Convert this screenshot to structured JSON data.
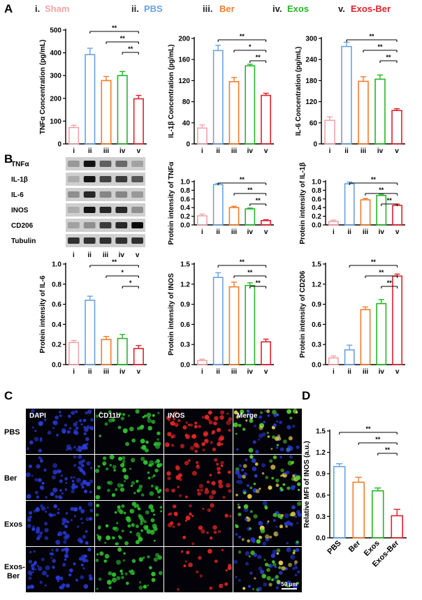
{
  "figure": {
    "panel_letters": [
      "A",
      "B",
      "C",
      "D"
    ],
    "group_labels": [
      {
        "numeral": "i.",
        "name": "Sham",
        "color": "#f2a3a8"
      },
      {
        "numeral": "ii.",
        "name": "PBS",
        "color": "#6aa2e0"
      },
      {
        "numeral": "iii.",
        "name": "Ber",
        "color": "#ef7d2c"
      },
      {
        "numeral": "iv.",
        "name": "Exos",
        "color": "#26b526"
      },
      {
        "numeral": "v.",
        "name": "Exos-Ber",
        "color": "#e0202a"
      }
    ],
    "western_blot": {
      "bands": [
        "TNFα",
        "IL-1β",
        "IL-6",
        "INOS",
        "CD206",
        "Tubulin"
      ],
      "lanes": [
        "i",
        "ii",
        "iii",
        "iv",
        "v"
      ]
    },
    "microscopy": {
      "channels": [
        "DAPI",
        "CD11b",
        "INOS",
        "Merge"
      ],
      "rows": [
        "PBS",
        "Ber",
        "Exos",
        "Exos-Ber"
      ],
      "scale_bar": "50 μm"
    }
  },
  "chart_data": [
    {
      "id": "tnfa",
      "panel": "A",
      "type": "bar",
      "categories": [
        "i",
        "ii",
        "iii",
        "iv",
        "v"
      ],
      "values": [
        72,
        392,
        278,
        300,
        198
      ],
      "errors": [
        10,
        28,
        18,
        18,
        15
      ],
      "ylabel": "TNFα Concentration (pg/mL)",
      "ylim": [
        0,
        500
      ],
      "yticks": [
        "0",
        "100",
        "200",
        "300",
        "400",
        "500"
      ],
      "significance": [
        {
          "from": "ii",
          "to": "v",
          "label": "**"
        },
        {
          "from": "iii",
          "to": "v",
          "label": "**"
        },
        {
          "from": "iv",
          "to": "v",
          "label": "**"
        }
      ]
    },
    {
      "id": "il1b",
      "panel": "A",
      "type": "bar",
      "categories": [
        "i",
        "ii",
        "iii",
        "iv",
        "v"
      ],
      "values": [
        30,
        177,
        118,
        148,
        92
      ],
      "errors": [
        6,
        10,
        8,
        3,
        4
      ],
      "ylabel": "IL-1β Concentration (pg/mL)",
      "ylim": [
        0,
        200
      ],
      "yticks": [
        "0",
        "40",
        "80",
        "120",
        "160",
        "200"
      ],
      "significance": [
        {
          "from": "ii",
          "to": "v",
          "label": "**"
        },
        {
          "from": "iii",
          "to": "v",
          "label": "*"
        },
        {
          "from": "iv",
          "to": "v",
          "label": "**"
        }
      ]
    },
    {
      "id": "il6",
      "panel": "A",
      "type": "bar",
      "categories": [
        "i",
        "ii",
        "iii",
        "iv",
        "v"
      ],
      "values": [
        67,
        277,
        178,
        184,
        95
      ],
      "errors": [
        10,
        12,
        13,
        12,
        5
      ],
      "ylabel": "IL-6 Concentration (pg/mL)",
      "ylim": [
        0,
        300
      ],
      "yticks": [
        "0",
        "60",
        "120",
        "180",
        "240",
        "300"
      ],
      "significance": [
        {
          "from": "ii",
          "to": "v",
          "label": "**"
        },
        {
          "from": "iii",
          "to": "v",
          "label": "**"
        },
        {
          "from": "iv",
          "to": "v",
          "label": "**"
        }
      ]
    },
    {
      "id": "pi_tnfa",
      "panel": "B",
      "type": "bar",
      "categories": [
        "i",
        "ii",
        "iii",
        "iv",
        "v"
      ],
      "values": [
        0.21,
        0.93,
        0.4,
        0.37,
        0.1
      ],
      "errors": [
        0.04,
        0.03,
        0.03,
        0.02,
        0.02
      ],
      "ylabel": "Protein intensity of TNFα",
      "ylim": [
        0,
        1.0
      ],
      "yticks": [
        "0.0",
        "0.2",
        "0.4",
        "0.6",
        "0.8",
        "1.0"
      ],
      "significance": [
        {
          "from": "ii",
          "to": "v",
          "label": "**"
        },
        {
          "from": "iii",
          "to": "v",
          "label": "**"
        },
        {
          "from": "iv",
          "to": "v",
          "label": "**"
        }
      ]
    },
    {
      "id": "pi_il1b",
      "panel": "B",
      "type": "bar",
      "categories": [
        "i",
        "ii",
        "iii",
        "iv",
        "v"
      ],
      "values": [
        0.08,
        0.95,
        0.58,
        0.68,
        0.45
      ],
      "errors": [
        0.03,
        0.04,
        0.03,
        0.03,
        0.03
      ],
      "ylabel": "Protein intensity of IL-1β",
      "ylim": [
        0,
        1.0
      ],
      "yticks": [
        "0.0",
        "0.2",
        "0.4",
        "0.6",
        "0.8",
        "1.0"
      ],
      "significance": [
        {
          "from": "ii",
          "to": "v",
          "label": "**"
        },
        {
          "from": "iii",
          "to": "v",
          "label": "**"
        },
        {
          "from": "iv",
          "to": "v",
          "label": "**"
        }
      ]
    },
    {
      "id": "pi_il6",
      "panel": "B",
      "type": "bar",
      "categories": [
        "i",
        "ii",
        "iii",
        "iv",
        "v"
      ],
      "values": [
        0.22,
        0.64,
        0.25,
        0.26,
        0.16
      ],
      "errors": [
        0.02,
        0.04,
        0.03,
        0.04,
        0.03
      ],
      "ylabel": "Protein intensity of IL-6",
      "ylim": [
        0,
        1.0
      ],
      "yticks": [
        "0.0",
        "0.2",
        "0.4",
        "0.6",
        "0.8",
        "1.0"
      ],
      "significance": [
        {
          "from": "ii",
          "to": "v",
          "label": "**"
        },
        {
          "from": "iii",
          "to": "v",
          "label": "*"
        },
        {
          "from": "iv",
          "to": "v",
          "label": "*"
        }
      ]
    },
    {
      "id": "pi_inos",
      "panel": "B",
      "type": "bar",
      "categories": [
        "i",
        "ii",
        "iii",
        "iv",
        "v"
      ],
      "values": [
        0.06,
        1.3,
        1.16,
        1.18,
        0.34
      ],
      "errors": [
        0.02,
        0.07,
        0.07,
        0.04,
        0.04
      ],
      "ylabel": "Protein intensity of INOS",
      "ylim": [
        0,
        1.5
      ],
      "yticks": [
        "0.0",
        "0.3",
        "0.6",
        "0.9",
        "1.2",
        "1.5"
      ],
      "significance": [
        {
          "from": "ii",
          "to": "v",
          "label": "**"
        },
        {
          "from": "iii",
          "to": "v",
          "label": "**"
        },
        {
          "from": "iv",
          "to": "v",
          "label": "**"
        }
      ]
    },
    {
      "id": "pi_cd206",
      "panel": "B",
      "type": "bar",
      "categories": [
        "i",
        "ii",
        "iii",
        "iv",
        "v"
      ],
      "values": [
        0.1,
        0.22,
        0.82,
        0.91,
        1.32
      ],
      "errors": [
        0.03,
        0.07,
        0.04,
        0.06,
        0.03
      ],
      "ylabel": "Protein intensity of CD206",
      "ylim": [
        0,
        1.5
      ],
      "yticks": [
        "0.0",
        "0.3",
        "0.6",
        "0.9",
        "1.2",
        "1.5"
      ],
      "significance": [
        {
          "from": "ii",
          "to": "v",
          "label": "**"
        },
        {
          "from": "iii",
          "to": "v",
          "label": "**"
        },
        {
          "from": "iv",
          "to": "v",
          "label": "**"
        }
      ]
    },
    {
      "id": "mfi_inos",
      "panel": "D",
      "type": "bar",
      "categories": [
        "PBS",
        "Ber",
        "Exos",
        "Exos-Ber"
      ],
      "values": [
        1.0,
        0.78,
        0.66,
        0.31
      ],
      "errors": [
        0.04,
        0.07,
        0.04,
        0.09
      ],
      "ylabel": "Relative MFI of INOS (a.u.)",
      "ylim": [
        0,
        1.5
      ],
      "yticks": [
        "0.0",
        "0.3",
        "0.6",
        "0.9",
        "1.2",
        "1.5"
      ],
      "colors": [
        "#6aa2e0",
        "#ef7d2c",
        "#26b526",
        "#e0202a"
      ],
      "significance": [
        {
          "from": "PBS",
          "to": "Exos-Ber",
          "label": "**"
        },
        {
          "from": "Ber",
          "to": "Exos-Ber",
          "label": "**"
        },
        {
          "from": "Exos",
          "to": "Exos-Ber",
          "label": "**"
        }
      ]
    }
  ]
}
